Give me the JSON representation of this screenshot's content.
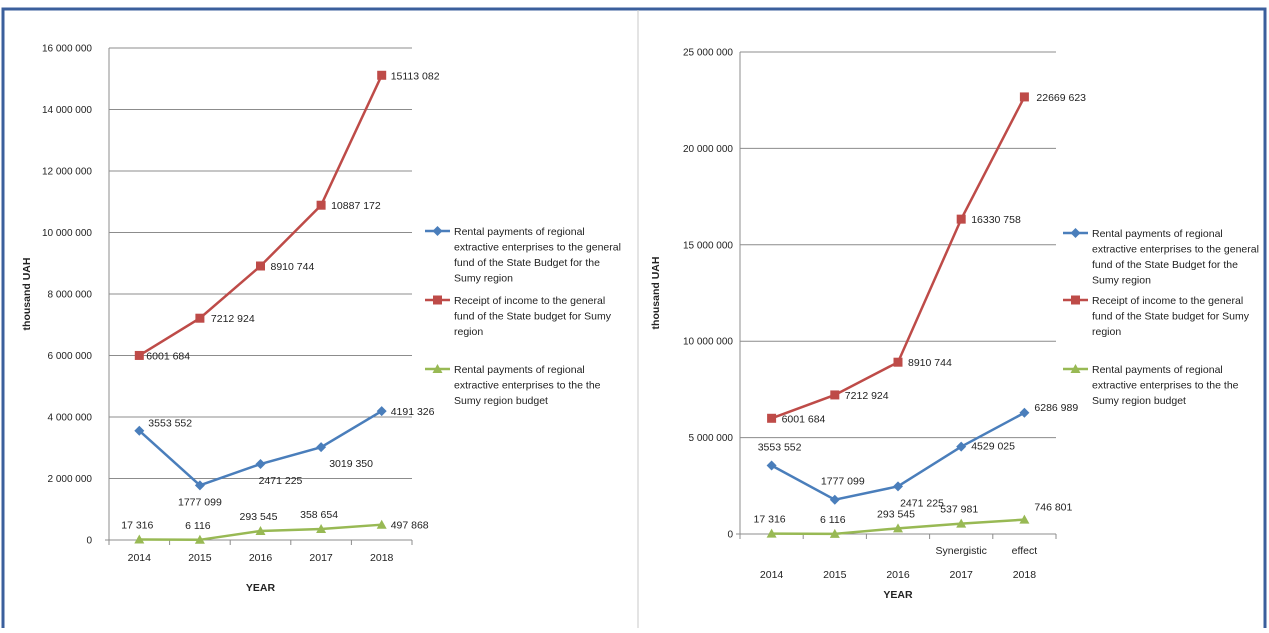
{
  "colors": {
    "series1": "#4a7ebb",
    "series2": "#be4b48",
    "series3": "#98b954",
    "grid": "#8c8c8c",
    "axis": "#8c8c8c",
    "frame": "#3b5f9c"
  },
  "chart_data": [
    {
      "type": "line",
      "title": "",
      "xlabel": "YEAR",
      "ylabel": "thousand UAH",
      "categories": [
        "2014",
        "2015",
        "2016",
        "2017",
        "2018"
      ],
      "ylim": [
        0,
        16000000
      ],
      "yticks": [
        0,
        2000000,
        4000000,
        6000000,
        8000000,
        10000000,
        12000000,
        14000000,
        16000000
      ],
      "ytick_labels": [
        "0",
        "2 000 000",
        "4 000 000",
        "6 000 000",
        "8 000 000",
        "10 000 000",
        "12 000 000",
        "14 000 000",
        "16 000 000"
      ],
      "grid": true,
      "legend_position": "right",
      "series": [
        {
          "name": "Rental payments of regional extractive enterprises to the general fund of the State Budget for the Sumy region",
          "legend_lines": [
            "Rental payments of regional",
            "extractive enterprises to the general",
            "fund of the State Budget for the",
            "Sumy region"
          ],
          "marker": "diamond",
          "values": [
            3553552,
            1777099,
            2471225,
            3019350,
            4191326
          ],
          "labels": [
            "3553 552",
            "1777 099",
            "2471 225",
            "3019 350",
            "4191 326"
          ]
        },
        {
          "name": "Receipt of income to the general fund of the State budget for Sumy region",
          "legend_lines": [
            "Receipt of income to the general",
            "fund of the State budget for Sumy",
            "region"
          ],
          "marker": "square",
          "values": [
            6001684,
            7212924,
            8910744,
            10887172,
            15113082
          ],
          "labels": [
            "6001 684",
            "7212 924",
            "8910 744",
            "10887 172",
            "15113 082"
          ]
        },
        {
          "name": "Rental payments of regional extractive enterprises to the the Sumy region budget",
          "legend_lines": [
            "Rental payments of regional",
            "extractive enterprises to the the",
            "Sumy region budget"
          ],
          "marker": "triangle",
          "values": [
            17316,
            6116,
            293545,
            358654,
            497868
          ],
          "labels": [
            "17 316",
            "6 116",
            "293 545",
            "358 654",
            "497 868"
          ]
        }
      ]
    },
    {
      "type": "line",
      "title": "",
      "xlabel": "YEAR",
      "ylabel": "thousand UAH",
      "categories": [
        "2014",
        "2015",
        "2016",
        "2017",
        "2018"
      ],
      "category_annotations": [
        "",
        "",
        "",
        "Synergistic",
        "effect"
      ],
      "ylim": [
        0,
        25000000
      ],
      "yticks": [
        0,
        5000000,
        10000000,
        15000000,
        20000000,
        25000000
      ],
      "ytick_labels": [
        "0",
        "5 000 000",
        "10 000 000",
        "15 000 000",
        "20 000 000",
        "25 000 000"
      ],
      "grid": true,
      "legend_position": "right",
      "series": [
        {
          "name": "Rental payments of regional extractive enterprises to the general fund of the State Budget for the Sumy region",
          "legend_lines": [
            "Rental payments of regional",
            "extractive enterprises to the general",
            "fund of the State Budget for the",
            "Sumy region"
          ],
          "marker": "diamond",
          "values": [
            3553552,
            1777099,
            2471225,
            4529025,
            6286989
          ],
          "labels": [
            "3553 552",
            "1777 099",
            "2471 225",
            "4529 025",
            "6286 989"
          ]
        },
        {
          "name": "Receipt of income to the general fund of the State budget for Sumy region",
          "legend_lines": [
            "Receipt of income to the general",
            "fund of the State budget for Sumy",
            "region"
          ],
          "marker": "square",
          "values": [
            6001684,
            7212924,
            8910744,
            16330758,
            22669623
          ],
          "labels": [
            "6001 684",
            "7212 924",
            "8910 744",
            "16330 758",
            "22669 623"
          ]
        },
        {
          "name": "Rental payments of regional extractive enterprises to the the Sumy region budget",
          "legend_lines": [
            "Rental payments of regional",
            "extractive enterprises to the the",
            "Sumy region budget"
          ],
          "marker": "triangle",
          "values": [
            17316,
            6116,
            293545,
            537981,
            746801
          ],
          "labels": [
            "17 316",
            "6 116",
            "293 545",
            "537 981",
            "746 801"
          ]
        }
      ]
    }
  ]
}
